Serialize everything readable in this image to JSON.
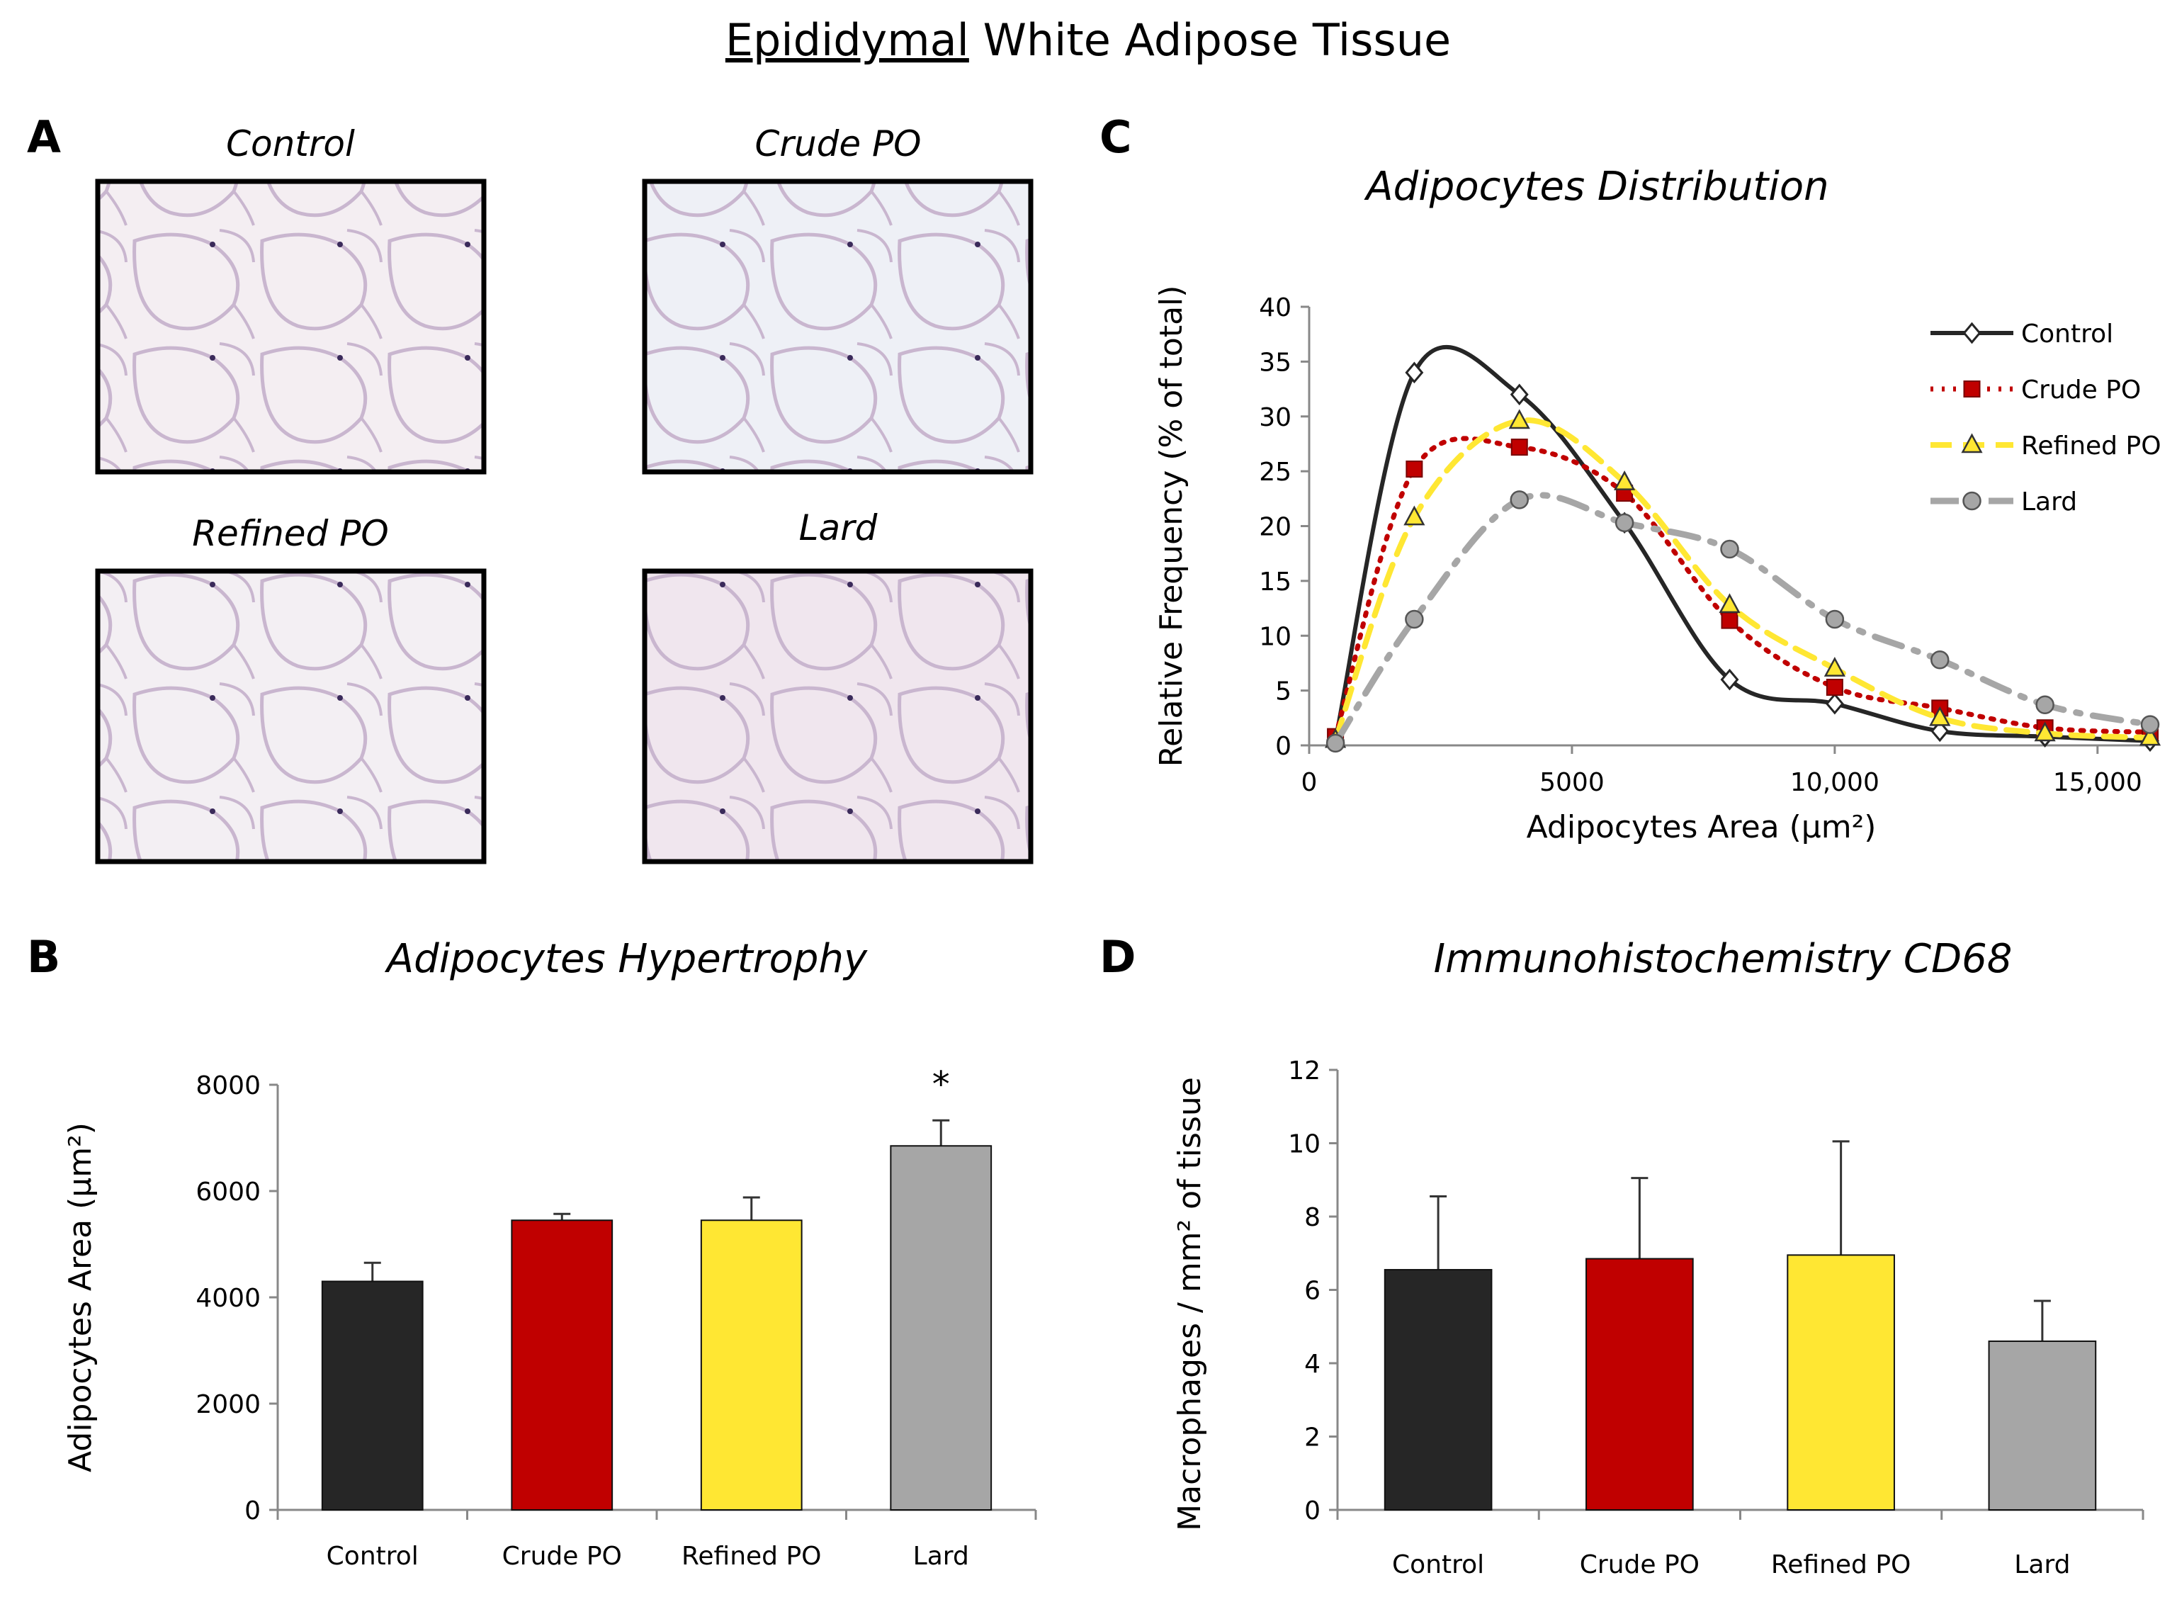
{
  "figure_title_underlined": "Epididymal",
  "figure_title_rest": " White Adipose Tissue",
  "panels": {
    "A": "A",
    "B": "B",
    "C": "C",
    "D": "D"
  },
  "micrographs": [
    {
      "label": "Control",
      "bg": "#f4eef2"
    },
    {
      "label": "Crude PO",
      "bg": "#eef0f6"
    },
    {
      "label": "Refined PO",
      "bg": "#f3eff3"
    },
    {
      "label": "Lard",
      "bg": "#f0e6ee"
    }
  ],
  "colors": {
    "control": "#262626",
    "crude": "#c00000",
    "refined": "#ffe733",
    "lard": "#a6a6a6"
  },
  "chart_data": [
    {
      "id": "C",
      "type": "line",
      "title": "Adipocytes Distribution",
      "xlabel": "Adipocytes Area (µm²)",
      "ylabel": "Relative Frequency (% of total)",
      "xlim": [
        0,
        16000
      ],
      "ylim": [
        0,
        40
      ],
      "xticks": [
        0,
        5000,
        10000,
        15000
      ],
      "xtick_labels": [
        "0",
        "5000",
        "10,000",
        "15,000"
      ],
      "yticks": [
        0,
        5,
        10,
        15,
        20,
        25,
        30,
        35,
        40
      ],
      "legend_position": "top-right",
      "series": [
        {
          "name": "Control",
          "x": [
            500,
            2000,
            4000,
            6000,
            8000,
            10000,
            12000,
            14000,
            16000
          ],
          "values": [
            0.5,
            34,
            32,
            20.3,
            6,
            3.8,
            1.3,
            0.8,
            0.4
          ],
          "color": "#262626",
          "style": "solid",
          "marker": "diamond"
        },
        {
          "name": "Crude PO",
          "x": [
            500,
            2000,
            4000,
            6000,
            8000,
            10000,
            12000,
            14000,
            16000
          ],
          "values": [
            0.8,
            25.2,
            27.2,
            23,
            11.4,
            5.3,
            3.4,
            1.6,
            1.2
          ],
          "color": "#c00000",
          "style": "dotted",
          "marker": "square"
        },
        {
          "name": "Refined PO",
          "x": [
            500,
            2000,
            4000,
            6000,
            8000,
            10000,
            12000,
            14000,
            16000
          ],
          "values": [
            0.5,
            20.8,
            29.6,
            24,
            12.8,
            7,
            2.5,
            1.1,
            0.7
          ],
          "color": "#ffe733",
          "style": "dashed",
          "marker": "triangle"
        },
        {
          "name": "Lard",
          "x": [
            500,
            2000,
            4000,
            6000,
            8000,
            10000,
            12000,
            14000,
            16000
          ],
          "values": [
            0.2,
            11.5,
            22.4,
            20.3,
            17.9,
            11.5,
            7.8,
            3.7,
            1.9
          ],
          "color": "#a6a6a6",
          "style": "dashdot",
          "marker": "circle"
        }
      ]
    },
    {
      "id": "B",
      "type": "bar",
      "title": "Adipocytes Hypertrophy",
      "xlabel": "",
      "ylabel": "Adipocytes Area (µm²)",
      "ylim": [
        0,
        8000
      ],
      "yticks": [
        0,
        2000,
        4000,
        6000,
        8000
      ],
      "categories": [
        "Control",
        "Crude PO",
        "Refined PO",
        "Lard"
      ],
      "values": [
        4300,
        5450,
        5450,
        6850
      ],
      "errors": [
        350,
        120,
        430,
        480
      ],
      "significance": [
        "",
        "",
        "",
        "*"
      ],
      "colors": [
        "#262626",
        "#c00000",
        "#ffe733",
        "#a6a6a6"
      ]
    },
    {
      "id": "D",
      "type": "bar",
      "title": "Immunohistochemistry CD68",
      "xlabel": "",
      "ylabel": "Macrophages / mm² of tissue",
      "ylim": [
        0,
        12
      ],
      "yticks": [
        0,
        2,
        4,
        6,
        8,
        10,
        12
      ],
      "categories": [
        "Control",
        "Crude PO",
        "Refined PO",
        "Lard"
      ],
      "values": [
        6.55,
        6.85,
        6.95,
        4.6
      ],
      "errors": [
        2.0,
        2.2,
        3.1,
        1.1
      ],
      "colors": [
        "#262626",
        "#c00000",
        "#ffe733",
        "#a6a6a6"
      ]
    }
  ]
}
